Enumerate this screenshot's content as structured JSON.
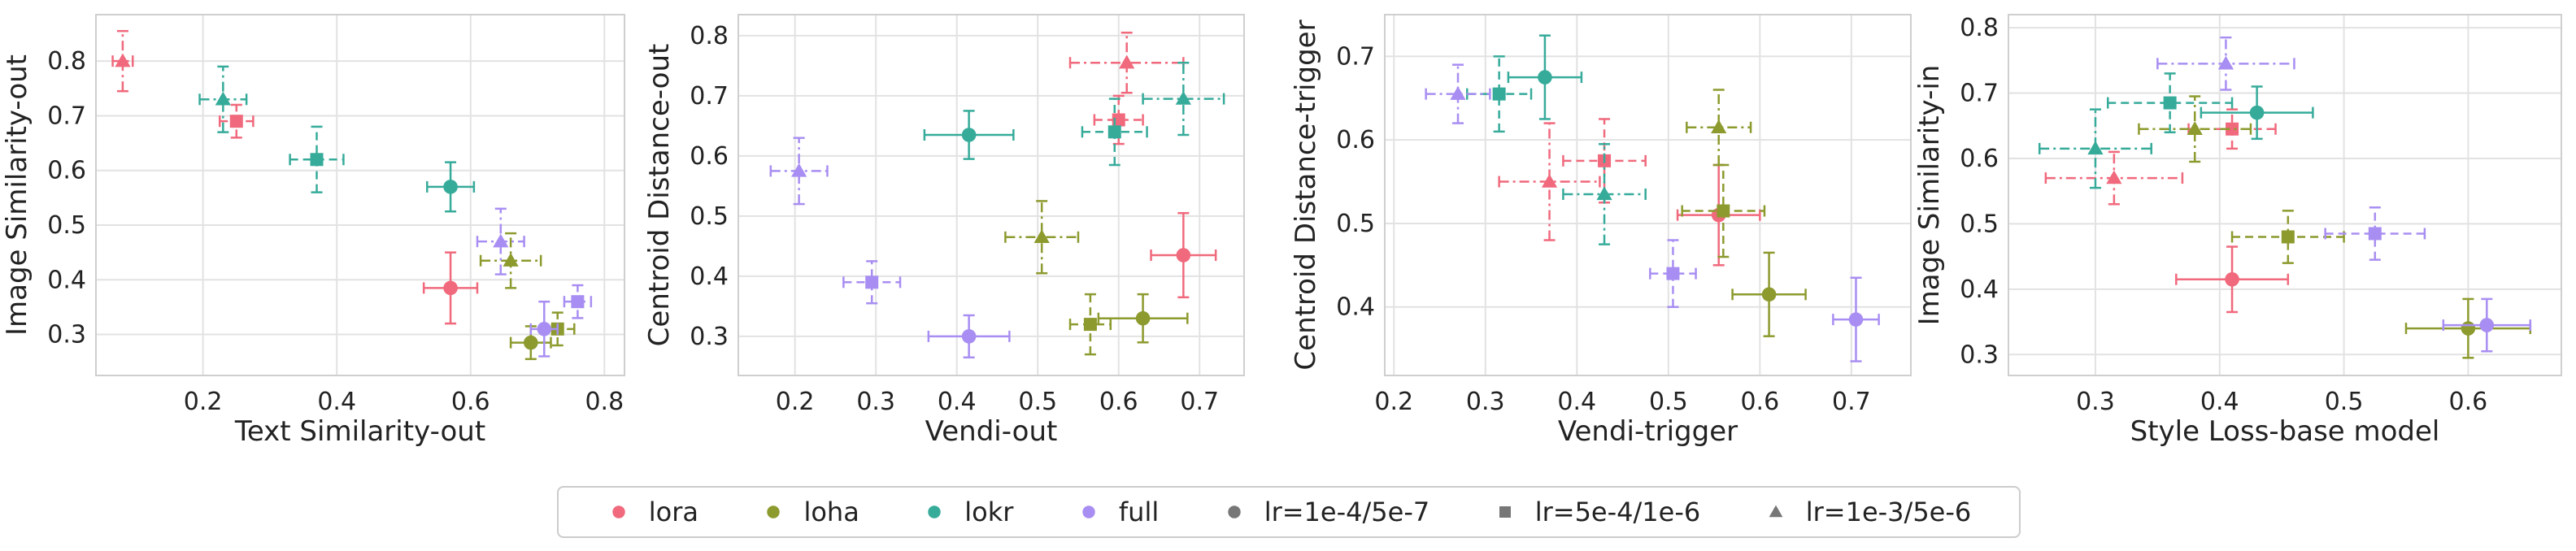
{
  "colors": {
    "lora": "#f0697c",
    "loha": "#8d9a2e",
    "lokr": "#36ab9a",
    "full": "#a88ef2",
    "gray": "#777777"
  },
  "legend": [
    {
      "label": "lora",
      "kind": "color",
      "key": "lora"
    },
    {
      "label": "loha",
      "kind": "color",
      "key": "loha"
    },
    {
      "label": "lokr",
      "kind": "color",
      "key": "lokr"
    },
    {
      "label": "full",
      "kind": "color",
      "key": "full"
    },
    {
      "label": "lr=1e-4/5e-7",
      "kind": "marker",
      "marker": "circle"
    },
    {
      "label": "lr=5e-4/1e-6",
      "kind": "marker",
      "marker": "square"
    },
    {
      "label": "lr=1e-3/5e-6",
      "kind": "marker",
      "marker": "triangle"
    }
  ],
  "chart_data": [
    {
      "type": "scatter",
      "title": "",
      "xlabel": "Text Similarity-out",
      "ylabel": "Image Similarity-out",
      "xlim": [
        0.04,
        0.83
      ],
      "ylim": [
        0.225,
        0.885
      ],
      "xticks": [
        0.2,
        0.4,
        0.6,
        0.8
      ],
      "yticks": [
        0.3,
        0.4,
        0.5,
        0.6,
        0.7,
        0.8
      ],
      "xtick_labels": [
        "0.2",
        "0.4",
        "0.6",
        "0.8"
      ],
      "ytick_labels": [
        "0.3",
        "0.4",
        "0.5",
        "0.6",
        "0.7",
        "0.8"
      ],
      "points": [
        {
          "method": "lora",
          "lr": "circle",
          "x": 0.57,
          "y": 0.385,
          "xerr": 0.04,
          "yerr": 0.065
        },
        {
          "method": "lora",
          "lr": "square",
          "x": 0.25,
          "y": 0.69,
          "xerr": 0.025,
          "yerr": 0.03
        },
        {
          "method": "lora",
          "lr": "triangle",
          "x": 0.08,
          "y": 0.8,
          "xerr": 0.015,
          "yerr": 0.055
        },
        {
          "method": "loha",
          "lr": "circle",
          "x": 0.69,
          "y": 0.285,
          "xerr": 0.03,
          "yerr": 0.03
        },
        {
          "method": "loha",
          "lr": "square",
          "x": 0.73,
          "y": 0.31,
          "xerr": 0.025,
          "yerr": 0.03
        },
        {
          "method": "loha",
          "lr": "triangle",
          "x": 0.66,
          "y": 0.435,
          "xerr": 0.045,
          "yerr": 0.05
        },
        {
          "method": "lokr",
          "lr": "circle",
          "x": 0.57,
          "y": 0.57,
          "xerr": 0.035,
          "yerr": 0.045
        },
        {
          "method": "lokr",
          "lr": "square",
          "x": 0.37,
          "y": 0.62,
          "xerr": 0.04,
          "yerr": 0.06
        },
        {
          "method": "lokr",
          "lr": "triangle",
          "x": 0.23,
          "y": 0.73,
          "xerr": 0.035,
          "yerr": 0.06
        },
        {
          "method": "full",
          "lr": "circle",
          "x": 0.71,
          "y": 0.31,
          "xerr": 0.02,
          "yerr": 0.05
        },
        {
          "method": "full",
          "lr": "square",
          "x": 0.76,
          "y": 0.36,
          "xerr": 0.02,
          "yerr": 0.03
        },
        {
          "method": "full",
          "lr": "triangle",
          "x": 0.645,
          "y": 0.47,
          "xerr": 0.035,
          "yerr": 0.06
        }
      ]
    },
    {
      "type": "scatter",
      "title": "",
      "xlabel": "Vendi-out",
      "ylabel": "Centroid Distance-out",
      "xlim": [
        0.13,
        0.755
      ],
      "ylim": [
        0.235,
        0.835
      ],
      "xticks": [
        0.2,
        0.3,
        0.4,
        0.5,
        0.6,
        0.7
      ],
      "yticks": [
        0.3,
        0.4,
        0.5,
        0.6,
        0.7,
        0.8
      ],
      "xtick_labels": [
        "0.2",
        "0.3",
        "0.4",
        "0.5",
        "0.6",
        "0.7"
      ],
      "ytick_labels": [
        "0.3",
        "0.4",
        "0.5",
        "0.6",
        "0.7",
        "0.8"
      ],
      "points": [
        {
          "method": "lora",
          "lr": "circle",
          "x": 0.68,
          "y": 0.435,
          "xerr": 0.04,
          "yerr": 0.07
        },
        {
          "method": "lora",
          "lr": "square",
          "x": 0.6,
          "y": 0.66,
          "xerr": 0.03,
          "yerr": 0.04
        },
        {
          "method": "lora",
          "lr": "triangle",
          "x": 0.61,
          "y": 0.755,
          "xerr": 0.07,
          "yerr": 0.05
        },
        {
          "method": "loha",
          "lr": "circle",
          "x": 0.63,
          "y": 0.33,
          "xerr": 0.055,
          "yerr": 0.04
        },
        {
          "method": "loha",
          "lr": "square",
          "x": 0.565,
          "y": 0.32,
          "xerr": 0.025,
          "yerr": 0.05
        },
        {
          "method": "loha",
          "lr": "triangle",
          "x": 0.505,
          "y": 0.465,
          "xerr": 0.045,
          "yerr": 0.06
        },
        {
          "method": "lokr",
          "lr": "circle",
          "x": 0.415,
          "y": 0.635,
          "xerr": 0.055,
          "yerr": 0.04
        },
        {
          "method": "lokr",
          "lr": "square",
          "x": 0.595,
          "y": 0.64,
          "xerr": 0.04,
          "yerr": 0.055
        },
        {
          "method": "lokr",
          "lr": "triangle",
          "x": 0.68,
          "y": 0.695,
          "xerr": 0.05,
          "yerr": 0.06
        },
        {
          "method": "full",
          "lr": "circle",
          "x": 0.415,
          "y": 0.3,
          "xerr": 0.05,
          "yerr": 0.035
        },
        {
          "method": "full",
          "lr": "square",
          "x": 0.295,
          "y": 0.39,
          "xerr": 0.035,
          "yerr": 0.035
        },
        {
          "method": "full",
          "lr": "triangle",
          "x": 0.205,
          "y": 0.575,
          "xerr": 0.035,
          "yerr": 0.055
        }
      ]
    },
    {
      "type": "scatter",
      "title": "",
      "xlabel": "Vendi-trigger",
      "ylabel": "Centroid Distance-trigger",
      "xlim": [
        0.19,
        0.765
      ],
      "ylim": [
        0.318,
        0.75
      ],
      "xticks": [
        0.2,
        0.3,
        0.4,
        0.5,
        0.6,
        0.7
      ],
      "yticks": [
        0.4,
        0.5,
        0.6,
        0.7
      ],
      "xtick_labels": [
        "0.2",
        "0.3",
        "0.4",
        "0.5",
        "0.6",
        "0.7"
      ],
      "ytick_labels": [
        "0.4",
        "0.5",
        "0.6",
        "0.7"
      ],
      "points": [
        {
          "method": "lora",
          "lr": "circle",
          "x": 0.555,
          "y": 0.51,
          "xerr": 0.045,
          "yerr": 0.06
        },
        {
          "method": "lora",
          "lr": "square",
          "x": 0.43,
          "y": 0.575,
          "xerr": 0.045,
          "yerr": 0.05
        },
        {
          "method": "lora",
          "lr": "triangle",
          "x": 0.37,
          "y": 0.55,
          "xerr": 0.055,
          "yerr": 0.07
        },
        {
          "method": "loha",
          "lr": "circle",
          "x": 0.61,
          "y": 0.415,
          "xerr": 0.04,
          "yerr": 0.05
        },
        {
          "method": "loha",
          "lr": "square",
          "x": 0.56,
          "y": 0.515,
          "xerr": 0.045,
          "yerr": 0.055
        },
        {
          "method": "loha",
          "lr": "triangle",
          "x": 0.555,
          "y": 0.615,
          "xerr": 0.035,
          "yerr": 0.045
        },
        {
          "method": "lokr",
          "lr": "circle",
          "x": 0.365,
          "y": 0.675,
          "xerr": 0.04,
          "yerr": 0.05
        },
        {
          "method": "lokr",
          "lr": "square",
          "x": 0.315,
          "y": 0.655,
          "xerr": 0.035,
          "yerr": 0.045
        },
        {
          "method": "lokr",
          "lr": "triangle",
          "x": 0.43,
          "y": 0.535,
          "xerr": 0.045,
          "yerr": 0.06
        },
        {
          "method": "full",
          "lr": "circle",
          "x": 0.705,
          "y": 0.385,
          "xerr": 0.025,
          "yerr": 0.05
        },
        {
          "method": "full",
          "lr": "square",
          "x": 0.505,
          "y": 0.44,
          "xerr": 0.025,
          "yerr": 0.04
        },
        {
          "method": "full",
          "lr": "triangle",
          "x": 0.27,
          "y": 0.655,
          "xerr": 0.035,
          "yerr": 0.035
        }
      ]
    },
    {
      "type": "scatter",
      "title": "",
      "xlabel": "Style Loss-base model",
      "ylabel": "Image Similarity-in",
      "xlim": [
        0.23,
        0.675
      ],
      "ylim": [
        0.268,
        0.82
      ],
      "xticks": [
        0.3,
        0.4,
        0.5,
        0.6
      ],
      "yticks": [
        0.3,
        0.4,
        0.5,
        0.6,
        0.7,
        0.8
      ],
      "xtick_labels": [
        "0.3",
        "0.4",
        "0.5",
        "0.6"
      ],
      "ytick_labels": [
        "0.3",
        "0.4",
        "0.5",
        "0.6",
        "0.7",
        "0.8"
      ],
      "points": [
        {
          "method": "lora",
          "lr": "circle",
          "x": 0.41,
          "y": 0.415,
          "xerr": 0.045,
          "yerr": 0.05
        },
        {
          "method": "lora",
          "lr": "square",
          "x": 0.41,
          "y": 0.645,
          "xerr": 0.035,
          "yerr": 0.03
        },
        {
          "method": "lora",
          "lr": "triangle",
          "x": 0.315,
          "y": 0.57,
          "xerr": 0.055,
          "yerr": 0.04
        },
        {
          "method": "loha",
          "lr": "circle",
          "x": 0.6,
          "y": 0.34,
          "xerr": 0.05,
          "yerr": 0.045
        },
        {
          "method": "loha",
          "lr": "square",
          "x": 0.455,
          "y": 0.48,
          "xerr": 0.045,
          "yerr": 0.04
        },
        {
          "method": "loha",
          "lr": "triangle",
          "x": 0.38,
          "y": 0.645,
          "xerr": 0.045,
          "yerr": 0.05
        },
        {
          "method": "lokr",
          "lr": "circle",
          "x": 0.43,
          "y": 0.67,
          "xerr": 0.045,
          "yerr": 0.04
        },
        {
          "method": "lokr",
          "lr": "square",
          "x": 0.36,
          "y": 0.685,
          "xerr": 0.05,
          "yerr": 0.045
        },
        {
          "method": "lokr",
          "lr": "triangle",
          "x": 0.3,
          "y": 0.615,
          "xerr": 0.045,
          "yerr": 0.06
        },
        {
          "method": "full",
          "lr": "circle",
          "x": 0.615,
          "y": 0.345,
          "xerr": 0.035,
          "yerr": 0.04
        },
        {
          "method": "full",
          "lr": "square",
          "x": 0.525,
          "y": 0.485,
          "xerr": 0.04,
          "yerr": 0.04
        },
        {
          "method": "full",
          "lr": "triangle",
          "x": 0.405,
          "y": 0.745,
          "xerr": 0.055,
          "yerr": 0.04
        }
      ]
    }
  ]
}
